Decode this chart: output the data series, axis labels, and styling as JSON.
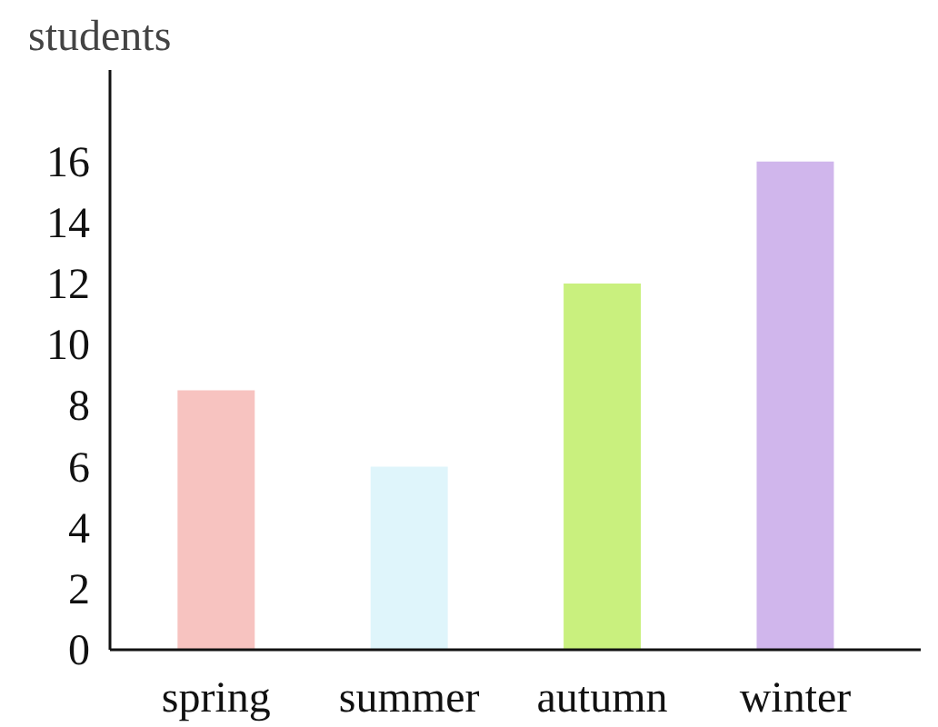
{
  "chart_data": {
    "type": "bar",
    "ylabel": "students",
    "categories": [
      "spring",
      "summer",
      "autumn",
      "winter"
    ],
    "values": [
      8.5,
      6,
      12,
      16
    ],
    "colors": [
      "#f7c3c0",
      "#dff5fb",
      "#c9f07e",
      "#d0b6ec"
    ],
    "ylim": [
      0,
      19
    ],
    "yticks": [
      0,
      2,
      4,
      6,
      8,
      10,
      12,
      14,
      16
    ],
    "grid": false
  }
}
